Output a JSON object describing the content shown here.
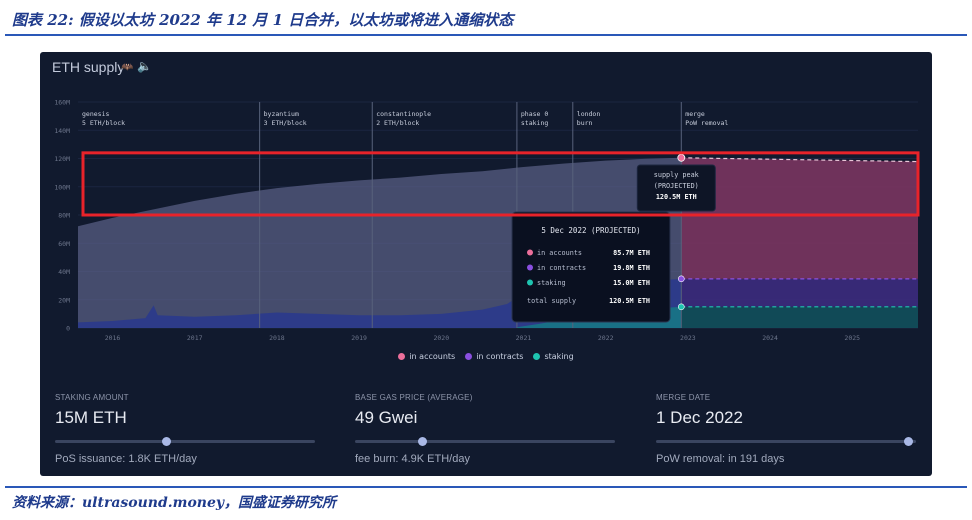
{
  "figure": {
    "title": "图表 22: 假设以太坊 2022 年 12 月 1 日合并，以太坊或将进入通缩状态",
    "source": "资料来源：ultrasound.money，国盛证券研究所"
  },
  "panel": {
    "title": "ETH supply",
    "icon_names": [
      "bat-icon",
      "speaker-icon"
    ]
  },
  "chart_data": {
    "type": "area",
    "title": "ETH supply",
    "ylim": [
      0,
      160
    ],
    "y_ticks": [
      0,
      20,
      40,
      60,
      80,
      100,
      120,
      140,
      160
    ],
    "y_tick_labels": [
      "0",
      "20M",
      "40M",
      "60M",
      "80M",
      "100M",
      "120M",
      "140M",
      "160M"
    ],
    "xlim": [
      2015.58,
      2025.8
    ],
    "x_ticks": [
      2016,
      2017,
      2018,
      2019,
      2020,
      2021,
      2022,
      2023,
      2024,
      2025
    ],
    "x_tick_labels": [
      "2016",
      "2017",
      "2018",
      "2019",
      "2020",
      "2021",
      "2022",
      "2023",
      "2024",
      "2025"
    ],
    "events": [
      {
        "x": 2015.58,
        "name": "genesis",
        "desc": "5 ETH/block"
      },
      {
        "x": 2017.79,
        "name": "byzantium",
        "desc": "3 ETH/block"
      },
      {
        "x": 2019.16,
        "name": "constantinople",
        "desc": "2 ETH/block"
      },
      {
        "x": 2020.92,
        "name": "phase 0",
        "desc": "staking"
      },
      {
        "x": 2021.6,
        "name": "london",
        "desc": "burn"
      },
      {
        "x": 2022.92,
        "name": "merge",
        "desc": "PoW removal"
      }
    ],
    "series": [
      {
        "name": "in accounts",
        "color": "#ec6f9b",
        "x": [
          2015.58,
          2016.0,
          2016.5,
          2017.0,
          2017.5,
          2018.0,
          2018.5,
          2019.0,
          2019.5,
          2020.0,
          2020.5,
          2020.92,
          2021.0,
          2021.5,
          2022.0,
          2022.5,
          2022.92
        ],
        "total": [
          72,
          78,
          84,
          90,
          95,
          99,
          102,
          104.5,
          106.5,
          109,
          111,
          113.5,
          114,
          116.5,
          118.5,
          119.8,
          120.5
        ]
      },
      {
        "name": "in contracts",
        "color": "#8a4fe0",
        "x": [
          2015.58,
          2016.0,
          2016.4,
          2016.5,
          2016.55,
          2017.0,
          2017.5,
          2018.0,
          2018.5,
          2019.0,
          2019.5,
          2020.0,
          2020.5,
          2020.8,
          2020.92,
          2021.2,
          2021.5,
          2022.0,
          2022.5,
          2022.92
        ],
        "values": [
          4,
          5,
          7,
          16,
          9,
          8,
          9,
          11,
          10,
          9,
          9,
          10,
          13,
          17,
          21,
          22,
          21,
          20,
          19.8,
          19.8
        ]
      },
      {
        "name": "staking",
        "color": "#1ec4b0",
        "x": [
          2020.92,
          2021.2,
          2021.5,
          2022.0,
          2022.5,
          2022.92
        ],
        "values": [
          0.5,
          3,
          6,
          11,
          13.5,
          15
        ]
      }
    ],
    "projection": {
      "x": [
        2022.92,
        2025.8
      ],
      "accounts": [
        85.7,
        83
      ],
      "contracts": [
        19.8,
        19.8
      ],
      "staking": [
        15,
        15
      ]
    },
    "annotations": {
      "supply_peak": {
        "lines": [
          "supply peak",
          "(PROJECTED)",
          "120.5M ETH"
        ],
        "x": 2022.92,
        "y": 120.5
      },
      "tooltip": {
        "title": "5 Dec 2022 (PROJECTED)",
        "rows": [
          {
            "label": "in accounts",
            "value": "85.7M ETH",
            "color": "#ec6f9b"
          },
          {
            "label": "in contracts",
            "value": "19.8M ETH",
            "color": "#8a4fe0"
          },
          {
            "label": "staking",
            "value": "15.0M ETH",
            "color": "#1ec4b0"
          }
        ],
        "total_label": "total supply",
        "total_value": "120.5M ETH"
      }
    },
    "legend": [
      {
        "name": "in accounts",
        "color": "#ec6f9b"
      },
      {
        "name": "in contracts",
        "color": "#8a4fe0"
      },
      {
        "name": "staking",
        "color": "#1ec4b0"
      }
    ],
    "highlight_box": {
      "x0": 2015.58,
      "x1": 2025.8,
      "y0": 80,
      "y1": 124,
      "color": "#e8232a"
    }
  },
  "controls": [
    {
      "label": "STAKING AMOUNT",
      "value": "15M ETH",
      "sub": "PoS issuance: 1.8K ETH/day",
      "slider": 0.43
    },
    {
      "label": "BASE GAS PRICE (AVERAGE)",
      "value": "49 Gwei",
      "sub": "fee burn: 4.9K ETH/day",
      "slider": 0.26
    },
    {
      "label": "MERGE DATE",
      "value": "1 Dec 2022",
      "sub": "PoW removal: in 191 days",
      "slider": 0.97
    }
  ]
}
